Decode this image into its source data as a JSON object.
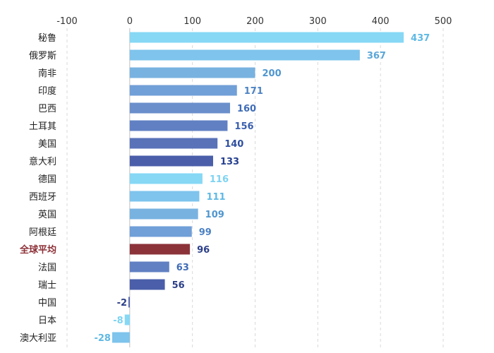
{
  "chart_data": {
    "type": "bar",
    "orientation": "horizontal",
    "title": "",
    "xlabel": "",
    "ylabel": "",
    "xlim": [
      -100,
      500
    ],
    "x_ticks": [
      -100,
      0,
      100,
      200,
      300,
      400,
      500
    ],
    "grid": true,
    "highlight_category": "全球平均",
    "categories": [
      "秘鲁",
      "俄罗斯",
      "南非",
      "印度",
      "巴西",
      "土耳其",
      "美国",
      "意大利",
      "德国",
      "西班牙",
      "英国",
      "阿根廷",
      "全球平均",
      "法国",
      "瑞士",
      "中国",
      "日本",
      "澳大利亚"
    ],
    "values": [
      437,
      367,
      200,
      171,
      160,
      156,
      140,
      133,
      116,
      111,
      109,
      99,
      96,
      63,
      56,
      -2,
      -8,
      -28
    ],
    "value_labels": [
      "437",
      "367",
      "200",
      "171",
      "160",
      "156",
      "140",
      "133",
      "116",
      "111",
      "109",
      "99",
      "96",
      "63",
      "56",
      "-2",
      "-8",
      "-28"
    ],
    "bar_colors": [
      "#86d8f5",
      "#7ec4ec",
      "#78b2e0",
      "#719fd7",
      "#6a8fcb",
      "#6180c3",
      "#5972b8",
      "#4a5ea9",
      "#86d8f5",
      "#7ec4ec",
      "#78b2e0",
      "#719fd7",
      "#8b3339",
      "#6180c3",
      "#4a5ea9",
      "#4a5ea9",
      "#86d8f5",
      "#7ec4ec"
    ],
    "label_colors": [
      "#5eb9e4",
      "#5aa6d8",
      "#4f96cf",
      "#4c82c2",
      "#3f6cb6",
      "#3a5fae",
      "#2f4f9e",
      "#253f8f",
      "#7dd3f2",
      "#5eb9e4",
      "#4f96cf",
      "#4c82c2",
      "#2c3f88",
      "#3f6cb6",
      "#2c3f88",
      "#2c3f88",
      "#7dd3f2",
      "#5eb9e4"
    ]
  }
}
